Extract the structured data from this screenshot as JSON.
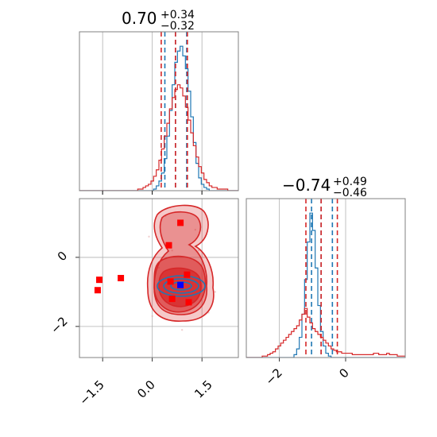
{
  "chart_data": [
    {
      "panel": "top-left",
      "type": "histogram",
      "title": "0.70",
      "title_plus": "+0.34",
      "title_minus": "−0.32",
      "xlim": [
        -2.2,
        2.6
      ],
      "grid": true,
      "series": [
        {
          "color": "#1f77b4",
          "counts": [
            0,
            0,
            0,
            0,
            0,
            0,
            0,
            0,
            0,
            0,
            0,
            0,
            0,
            0,
            0,
            0,
            0,
            0,
            0,
            0,
            0,
            0,
            0,
            0,
            0,
            0,
            0,
            0,
            1,
            3,
            6,
            11,
            20,
            34,
            50,
            66,
            80,
            87,
            90,
            84,
            76,
            62,
            46,
            30,
            17,
            8,
            4,
            2,
            1,
            0,
            0,
            0,
            0,
            0,
            0,
            0,
            0,
            0,
            0,
            0
          ],
          "quantiles": [
            0.38,
            0.7,
            1.04
          ]
        },
        {
          "color": "#d62728",
          "counts": [
            0,
            0,
            0,
            0,
            0,
            0,
            0,
            0,
            0,
            0,
            0,
            0,
            0,
            0,
            0,
            0,
            0,
            0,
            0,
            0,
            0,
            0,
            1,
            1,
            2,
            3,
            4,
            6,
            9,
            13,
            19,
            26,
            34,
            42,
            51,
            58,
            63,
            66,
            64,
            59,
            52,
            44,
            36,
            28,
            21,
            15,
            11,
            7,
            5,
            3,
            2,
            2,
            1,
            1,
            1,
            1,
            0,
            0,
            0,
            0
          ],
          "quantiles": [
            0.27,
            0.7,
            1.06
          ]
        }
      ]
    },
    {
      "panel": "bottom-right",
      "type": "histogram",
      "title": "−0.74",
      "title_plus": "+0.49",
      "title_minus": "−0.46",
      "xlim": [
        -3.0,
        1.8
      ],
      "xticks": [
        -2,
        0
      ],
      "xtick_labels": [
        "−2",
        "0"
      ],
      "grid": true,
      "series": [
        {
          "color": "#1f77b4",
          "counts": [
            0,
            0,
            0,
            0,
            0,
            0,
            0,
            0,
            0,
            0,
            0,
            0,
            0,
            0,
            0,
            0,
            0,
            0,
            2,
            6,
            14,
            30,
            54,
            80,
            100,
            88,
            62,
            36,
            18,
            8,
            3,
            1,
            0,
            0,
            0,
            0,
            0,
            0,
            0,
            0,
            0,
            0,
            0,
            0,
            0,
            0,
            0,
            0,
            0,
            0,
            0,
            0,
            0,
            0,
            0,
            0,
            0,
            0,
            0,
            0
          ],
          "quantiles": [
            -1.03,
            -0.74,
            -0.4
          ]
        },
        {
          "color": "#d62728",
          "counts": [
            0,
            0,
            0,
            0,
            0,
            0,
            1,
            1,
            2,
            3,
            4,
            6,
            8,
            10,
            12,
            14,
            16,
            18,
            20,
            22,
            26,
            30,
            34,
            28,
            24,
            20,
            18,
            16,
            14,
            12,
            10,
            8,
            6,
            5,
            4,
            4,
            3,
            3,
            3,
            3,
            2,
            2,
            2,
            2,
            2,
            2,
            2,
            2,
            3,
            3,
            2,
            2,
            2,
            3,
            2,
            2,
            2,
            1,
            1,
            1
          ],
          "quantiles": [
            -1.2,
            -0.74,
            -0.25
          ]
        }
      ]
    },
    {
      "panel": "bottom-left",
      "type": "scatter",
      "xlim": [
        -2.2,
        2.6
      ],
      "ylim": [
        -2.9,
        1.7
      ],
      "xticks": [
        -1.5,
        0.0,
        1.5
      ],
      "xtick_labels": [
        "−1.5",
        "0.0",
        "1.5"
      ],
      "yticks": [
        0,
        -2
      ],
      "ytick_labels": [
        "0",
        "−2"
      ],
      "grid": true,
      "red_points": [
        [
          -1.65,
          -0.95
        ],
        [
          -1.6,
          -0.65
        ],
        [
          -0.95,
          -0.6
        ],
        [
          0.5,
          0.35
        ],
        [
          0.85,
          1.0
        ],
        [
          1.05,
          -0.5
        ],
        [
          0.6,
          -1.2
        ],
        [
          0.55,
          -0.7
        ],
        [
          1.1,
          -1.3
        ]
      ],
      "blue_points": [
        [
          0.85,
          -0.8
        ]
      ],
      "contour_colors": [
        "#d62728",
        "#1f77b4"
      ]
    }
  ]
}
